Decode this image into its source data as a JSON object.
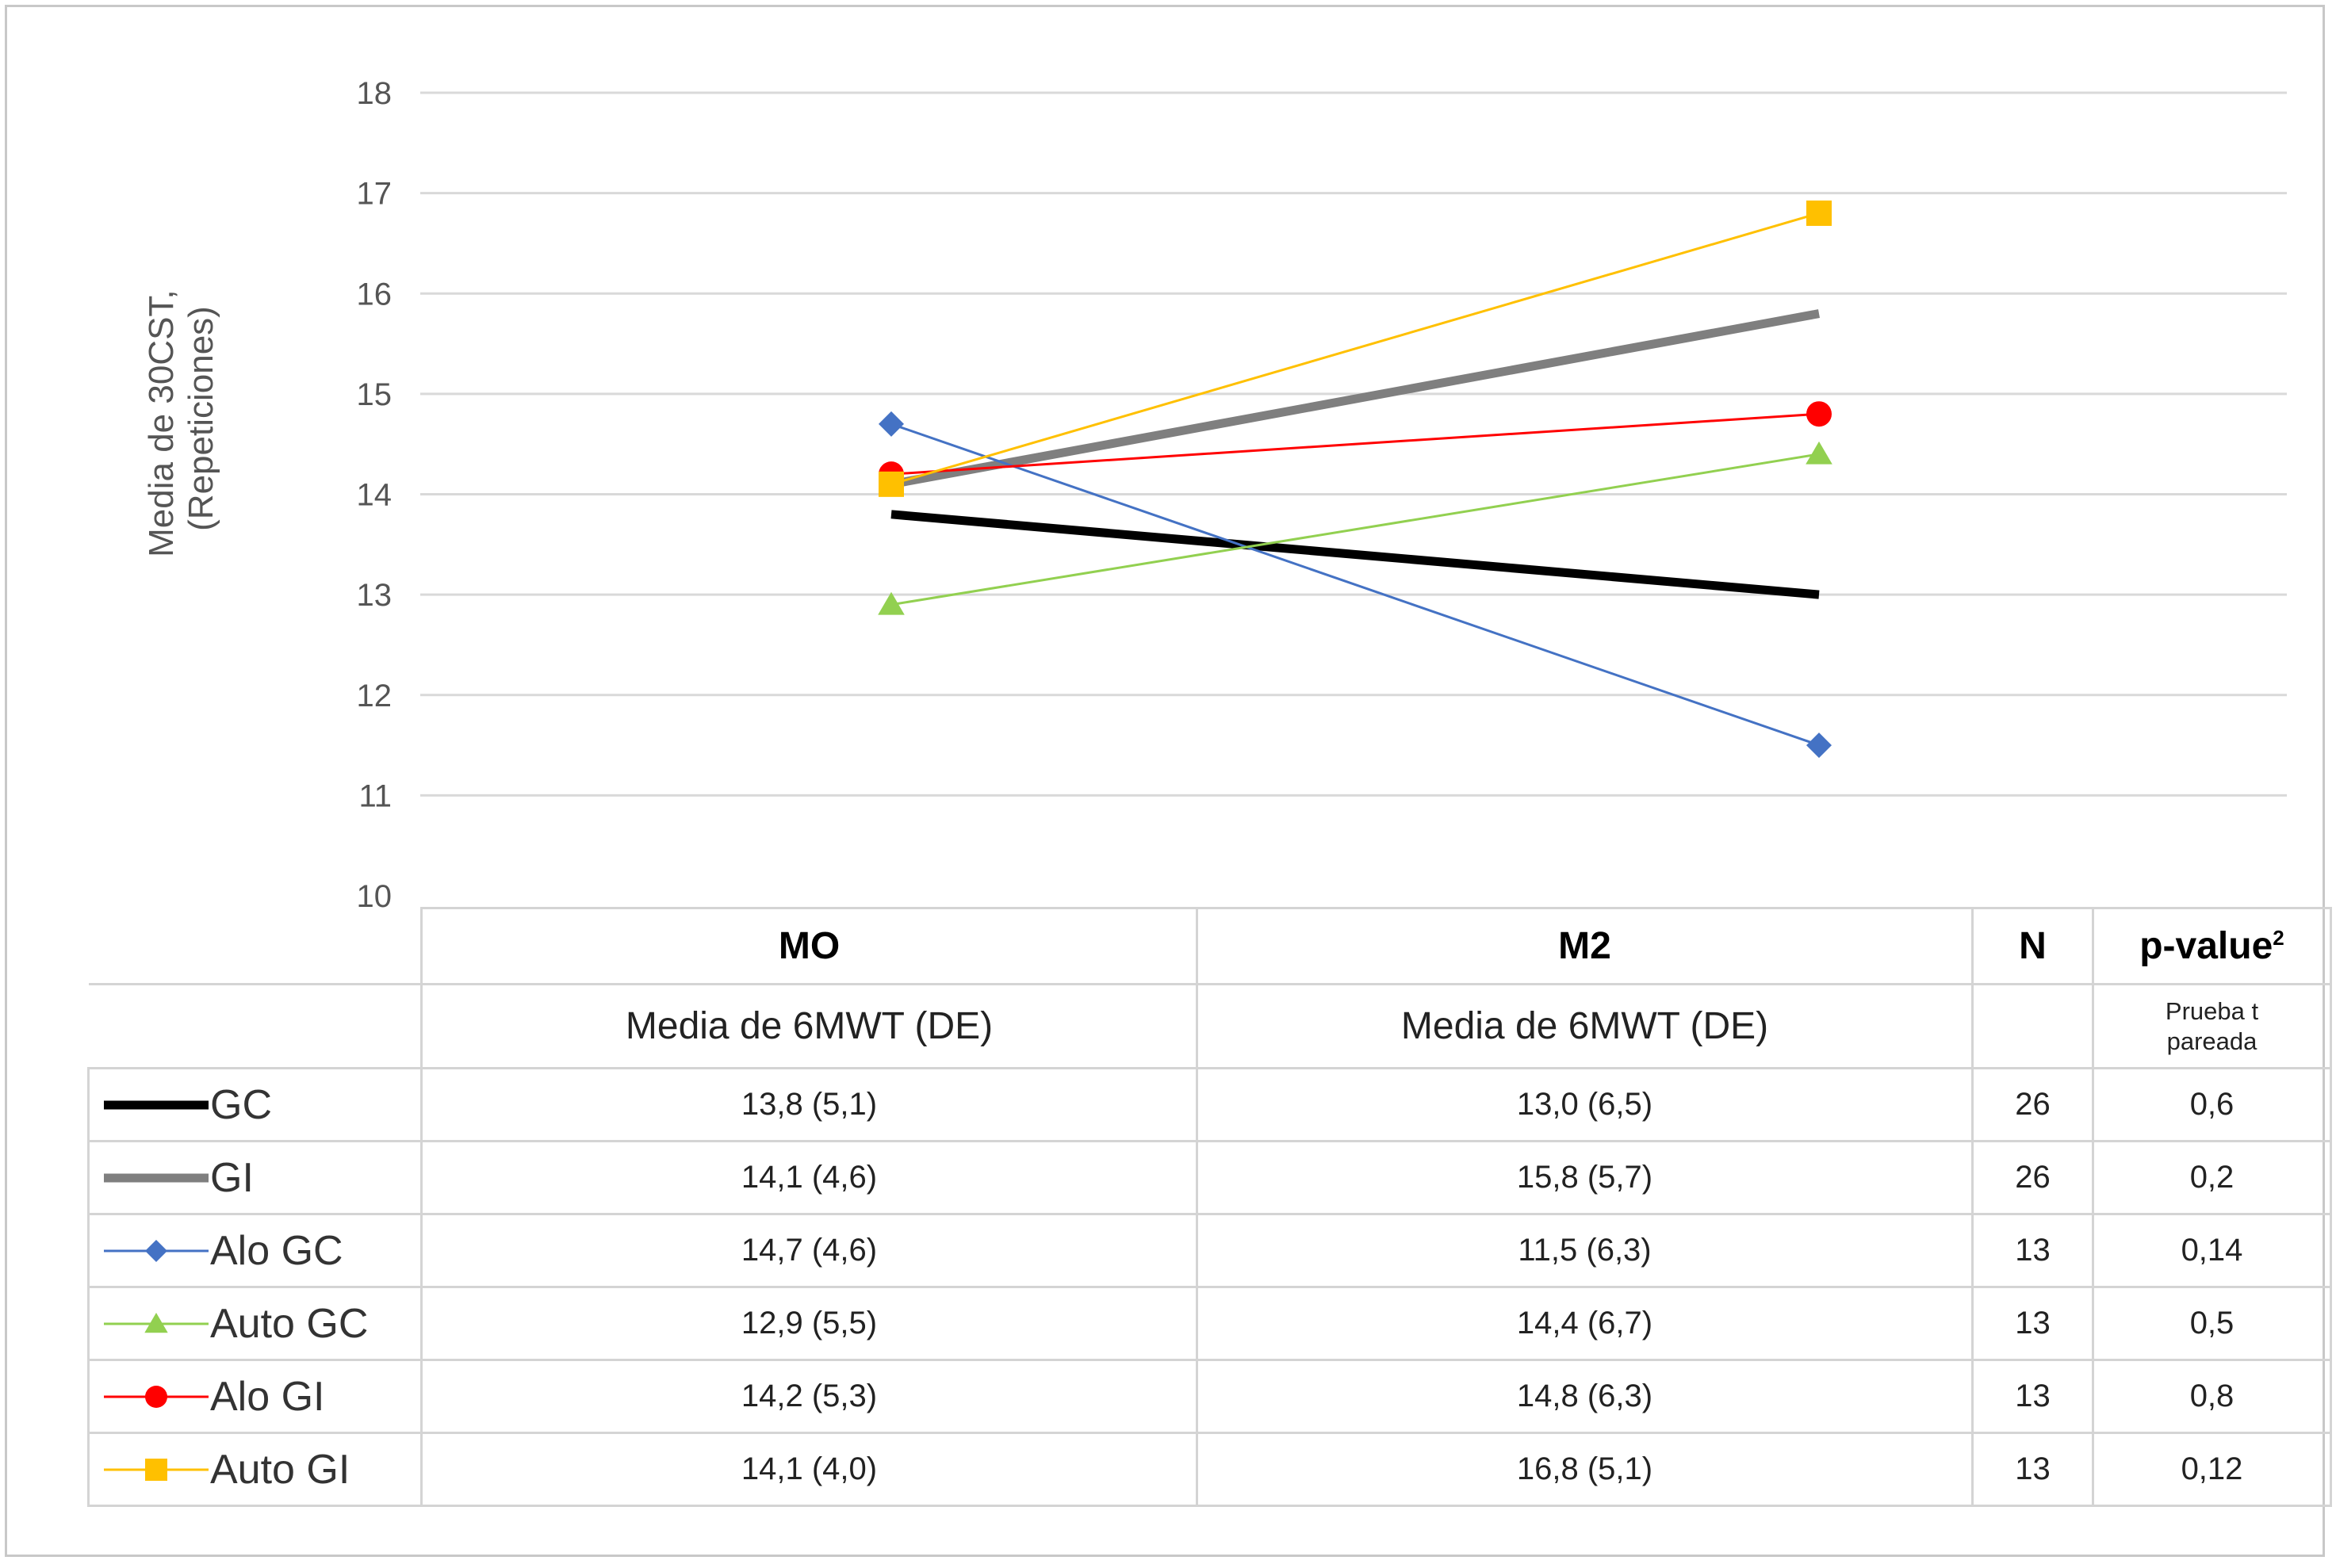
{
  "chart_data": {
    "type": "line",
    "ylabel_line1": "Media de 30CST,",
    "ylabel_line2": "(Repeticiones)",
    "ylim": [
      10,
      18
    ],
    "yticks": [
      10,
      11,
      12,
      13,
      14,
      15,
      16,
      17,
      18
    ],
    "grid": "horizontal",
    "categories": [
      "MO",
      "M2"
    ],
    "series": [
      {
        "name": "GC",
        "values": [
          13.8,
          13.0
        ],
        "color": "#000000",
        "marker": "none",
        "weight": "thick"
      },
      {
        "name": "GI",
        "values": [
          14.1,
          15.8
        ],
        "color": "#7f7f7f",
        "marker": "none",
        "weight": "thick"
      },
      {
        "name": "Alo GC",
        "values": [
          14.7,
          11.5
        ],
        "color": "#4472c4",
        "marker": "diamond",
        "weight": "thin"
      },
      {
        "name": "Auto GC",
        "values": [
          12.9,
          14.4
        ],
        "color": "#92d050",
        "marker": "triangle",
        "weight": "thin"
      },
      {
        "name": "Alo GI",
        "values": [
          14.2,
          14.8
        ],
        "color": "#ff0000",
        "marker": "circle",
        "weight": "thin"
      },
      {
        "name": "Auto GI",
        "values": [
          14.1,
          16.8
        ],
        "color": "#ffc000",
        "marker": "square",
        "weight": "thin"
      }
    ]
  },
  "table": {
    "col_mo": "MO",
    "col_m2": "M2",
    "col_n": "N",
    "col_p": "p-value",
    "col_p_sup": "2",
    "sub_mo": "Media de 6MWT (DE)",
    "sub_m2": "Media de 6MWT (DE)",
    "sub_p_line1": "Prueba t",
    "sub_p_line2": "pareada",
    "rows": [
      {
        "label": "GC",
        "mo": "13,8 (5,1)",
        "m2": "13,0 (6,5)",
        "n": "26",
        "p": "0,6"
      },
      {
        "label": "GI",
        "mo": "14,1 (4,6)",
        "m2": "15,8 (5,7)",
        "n": "26",
        "p": "0,2"
      },
      {
        "label": "Alo GC",
        "mo": "14,7 (4,6)",
        "m2": "11,5 (6,3)",
        "n": "13",
        "p": "0,14"
      },
      {
        "label": "Auto GC",
        "mo": "12,9 (5,5)",
        "m2": "14,4 (6,7)",
        "n": "13",
        "p": "0,5"
      },
      {
        "label": "Alo GI",
        "mo": "14,2 (5,3)",
        "m2": "14,8 (6,3)",
        "n": "13",
        "p": "0,8"
      },
      {
        "label": "Auto GI",
        "mo": "14,1 (4,0)",
        "m2": "16,8 (5,1)",
        "n": "13",
        "p": "0,12"
      }
    ]
  }
}
